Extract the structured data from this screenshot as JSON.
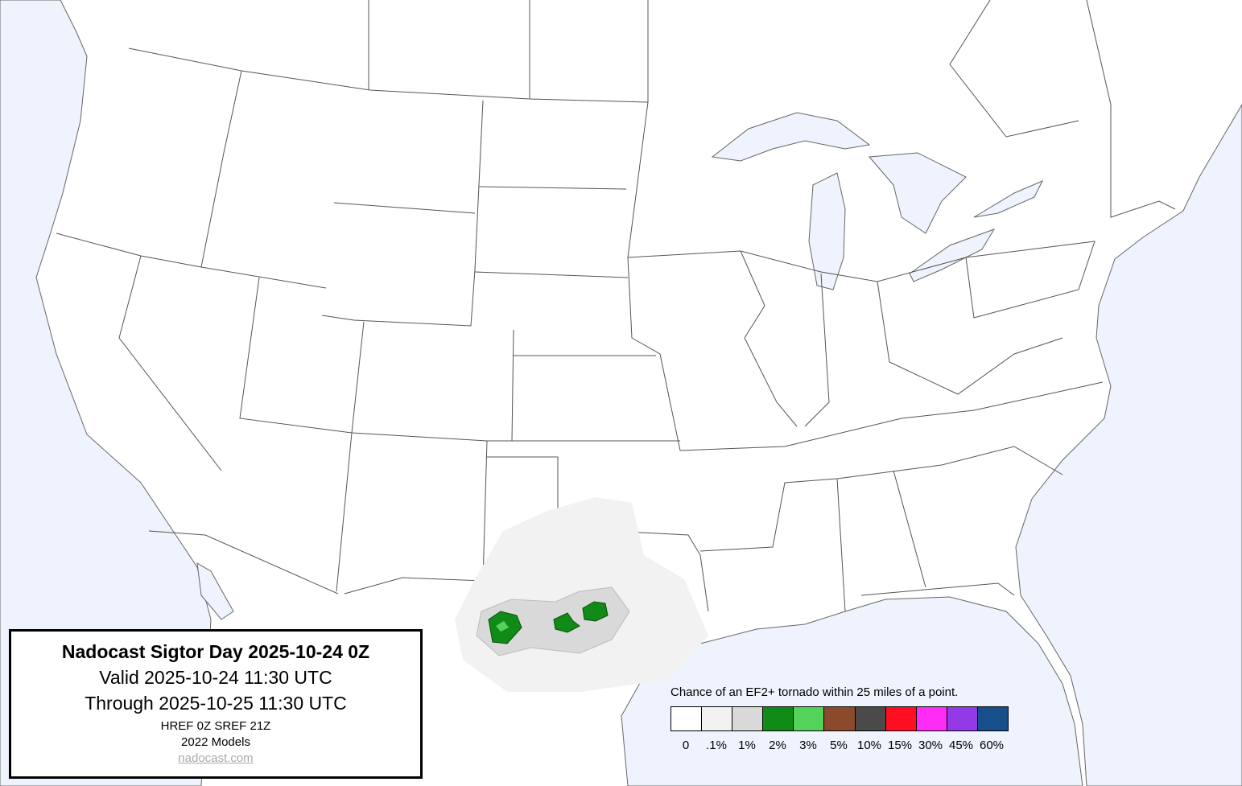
{
  "title_box": {
    "title": "Nadocast Sigtor Day 2025-10-24 0Z",
    "valid": "Valid 2025-10-24 11:30 UTC",
    "through": "Through 2025-10-25 11:30 UTC",
    "models_line": "HREF 0Z SREF 21Z",
    "models_year": "2022 Models",
    "site_link": "nadocast.com"
  },
  "legend": {
    "title": "Chance of an EF2+ tornado within 25 miles of a point.",
    "bins": [
      {
        "label": "0",
        "color": "#ffffff"
      },
      {
        "label": ".1%",
        "color": "#f2f2f2"
      },
      {
        "label": "1%",
        "color": "#d9d9d9"
      },
      {
        "label": "2%",
        "color": "#118b18"
      },
      {
        "label": "3%",
        "color": "#53d35a"
      },
      {
        "label": "5%",
        "color": "#8a4a2b"
      },
      {
        "label": "10%",
        "color": "#4a4a4a"
      },
      {
        "label": "15%",
        "color": "#ff0f21"
      },
      {
        "label": "30%",
        "color": "#ff2cf5"
      },
      {
        "label": "45%",
        "color": "#9339e8"
      },
      {
        "label": "60%",
        "color": "#164f8a"
      }
    ]
  },
  "map": {
    "water_color": "#eef3fd",
    "land_color": "#ffffff",
    "highest_risk_region": "South-central Texas",
    "max_probability_shown": "3%"
  }
}
